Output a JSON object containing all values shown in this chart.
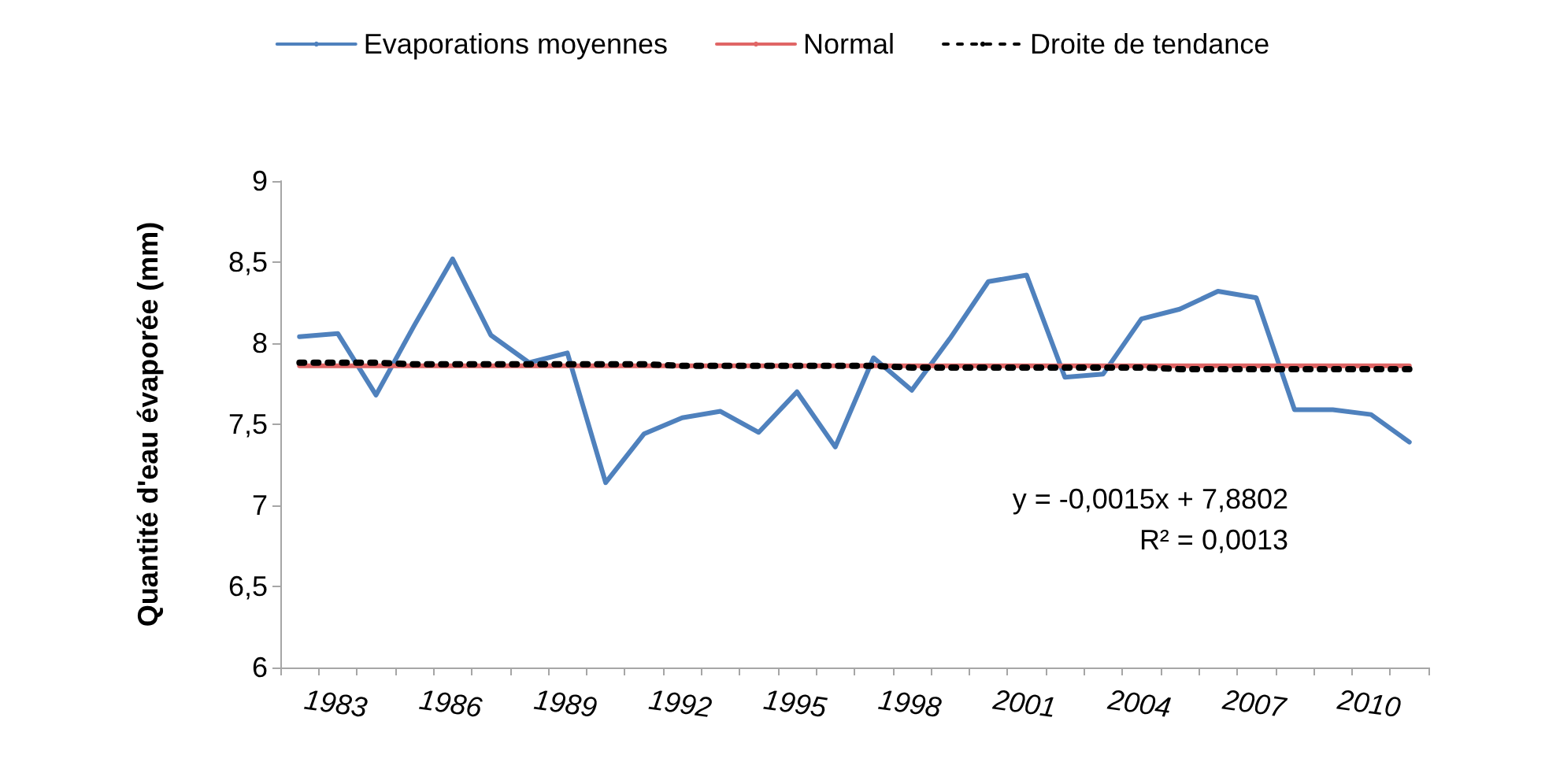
{
  "chart_data": {
    "type": "line",
    "ylabel": "Quantité d'eau évaporée (mm)",
    "categories": [
      null,
      "1983",
      null,
      null,
      "1986",
      null,
      null,
      "1989",
      null,
      null,
      "1992",
      null,
      null,
      "1995",
      null,
      null,
      "1998",
      null,
      null,
      "2001",
      null,
      null,
      "2004",
      null,
      null,
      "2007",
      null,
      null,
      "2010",
      null
    ],
    "series": [
      {
        "name": "Evaporations moyennes",
        "color": "#4f81bd",
        "line_style": "solid",
        "values": [
          8.04,
          8.06,
          7.68,
          8.11,
          8.52,
          8.05,
          7.88,
          7.94,
          7.14,
          7.44,
          7.54,
          7.58,
          7.45,
          7.7,
          7.36,
          7.91,
          7.71,
          8.03,
          8.38,
          8.42,
          7.79,
          7.81,
          8.15,
          8.21,
          8.32,
          8.28,
          7.59,
          7.59,
          7.56,
          7.39
        ]
      },
      {
        "name": "Normal",
        "color": "#e06666",
        "line_style": "solid",
        "values": [
          7.86,
          7.86,
          7.86,
          7.86,
          7.86,
          7.86,
          7.86,
          7.86,
          7.86,
          7.86,
          7.86,
          7.86,
          7.86,
          7.86,
          7.86,
          7.86,
          7.86,
          7.86,
          7.86,
          7.86,
          7.86,
          7.86,
          7.86,
          7.86,
          7.86,
          7.86,
          7.86,
          7.86,
          7.86,
          7.86
        ]
      },
      {
        "name": "Droite de tendance",
        "color": "#000000",
        "line_style": "dotted",
        "values": [
          7.88,
          7.88,
          7.88,
          7.87,
          7.87,
          7.87,
          7.87,
          7.87,
          7.87,
          7.87,
          7.86,
          7.86,
          7.86,
          7.86,
          7.86,
          7.86,
          7.85,
          7.85,
          7.85,
          7.85,
          7.85,
          7.85,
          7.85,
          7.84,
          7.84,
          7.84,
          7.84,
          7.84,
          7.84,
          7.84
        ]
      }
    ],
    "ylim": [
      6,
      9
    ],
    "yticks": [
      6,
      {
        "value": 6.5,
        "label": "6,5"
      },
      7,
      {
        "value": 7.5,
        "label": "7,5"
      },
      8,
      {
        "value": 8.5,
        "label": "8,5"
      },
      9
    ],
    "annotations": [
      "y = -0,0015x + 7,8802",
      "R² = 0,0013"
    ],
    "grid": false,
    "legend": "top",
    "marker": "none"
  }
}
